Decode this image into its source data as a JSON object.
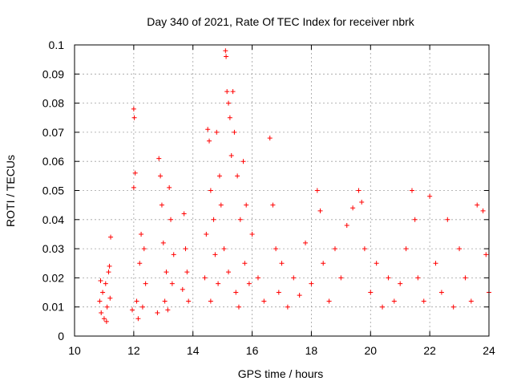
{
  "chart_data": {
    "type": "scatter",
    "title": "Day 340 of 2021, Rate Of TEC Index for receiver nbrk",
    "xlabel": "GPS time / hours",
    "ylabel": "ROTI / TECUs",
    "xlim": [
      10,
      24
    ],
    "ylim": [
      0,
      0.1
    ],
    "x_ticks": [
      "10",
      "12",
      "14",
      "16",
      "18",
      "20",
      "22",
      "24"
    ],
    "y_ticks": [
      "0",
      "0.01",
      "0.02",
      "0.03",
      "0.04",
      "0.05",
      "0.06",
      "0.07",
      "0.08",
      "0.09",
      "0.1"
    ],
    "grid": true,
    "legend": "none",
    "marker": "plus",
    "color": "#ff0000",
    "series": [
      {
        "values_description": "ROTI samples",
        "points": [
          [
            10.85,
            0.012
          ],
          [
            10.9,
            0.008
          ],
          [
            10.95,
            0.015
          ],
          [
            11.0,
            0.006
          ],
          [
            11.05,
            0.018
          ],
          [
            11.1,
            0.01
          ],
          [
            11.15,
            0.022
          ],
          [
            11.2,
            0.013
          ],
          [
            11.22,
            0.034
          ],
          [
            11.18,
            0.024
          ],
          [
            10.88,
            0.019
          ],
          [
            11.08,
            0.005
          ],
          [
            12.0,
            0.078
          ],
          [
            12.02,
            0.075
          ],
          [
            12.05,
            0.056
          ],
          [
            12.0,
            0.051
          ],
          [
            11.95,
            0.009
          ],
          [
            12.1,
            0.012
          ],
          [
            12.2,
            0.025
          ],
          [
            12.25,
            0.035
          ],
          [
            12.3,
            0.01
          ],
          [
            12.15,
            0.006
          ],
          [
            12.35,
            0.03
          ],
          [
            12.4,
            0.018
          ],
          [
            12.85,
            0.061
          ],
          [
            12.9,
            0.055
          ],
          [
            12.95,
            0.045
          ],
          [
            13.0,
            0.032
          ],
          [
            13.05,
            0.012
          ],
          [
            13.1,
            0.022
          ],
          [
            13.2,
            0.051
          ],
          [
            13.25,
            0.04
          ],
          [
            13.3,
            0.018
          ],
          [
            13.35,
            0.028
          ],
          [
            12.8,
            0.008
          ],
          [
            13.15,
            0.009
          ],
          [
            13.7,
            0.042
          ],
          [
            13.75,
            0.03
          ],
          [
            13.8,
            0.022
          ],
          [
            13.85,
            0.012
          ],
          [
            13.65,
            0.016
          ],
          [
            14.5,
            0.071
          ],
          [
            14.55,
            0.067
          ],
          [
            14.6,
            0.05
          ],
          [
            14.7,
            0.04
          ],
          [
            14.8,
            0.07
          ],
          [
            14.9,
            0.055
          ],
          [
            14.45,
            0.035
          ],
          [
            14.4,
            0.02
          ],
          [
            14.6,
            0.012
          ],
          [
            14.75,
            0.028
          ],
          [
            14.85,
            0.018
          ],
          [
            14.95,
            0.045
          ],
          [
            15.1,
            0.098
          ],
          [
            15.12,
            0.096
          ],
          [
            15.15,
            0.084
          ],
          [
            15.2,
            0.08
          ],
          [
            15.25,
            0.075
          ],
          [
            15.3,
            0.062
          ],
          [
            15.35,
            0.084
          ],
          [
            15.4,
            0.07
          ],
          [
            15.5,
            0.055
          ],
          [
            15.6,
            0.04
          ],
          [
            15.7,
            0.06
          ],
          [
            15.8,
            0.045
          ],
          [
            15.05,
            0.03
          ],
          [
            15.2,
            0.022
          ],
          [
            15.45,
            0.015
          ],
          [
            15.55,
            0.01
          ],
          [
            15.75,
            0.025
          ],
          [
            15.9,
            0.018
          ],
          [
            16.0,
            0.035
          ],
          [
            16.2,
            0.02
          ],
          [
            16.4,
            0.012
          ],
          [
            16.6,
            0.068
          ],
          [
            16.7,
            0.045
          ],
          [
            16.8,
            0.03
          ],
          [
            16.9,
            0.015
          ],
          [
            17.0,
            0.025
          ],
          [
            17.2,
            0.01
          ],
          [
            17.4,
            0.02
          ],
          [
            17.6,
            0.014
          ],
          [
            17.8,
            0.032
          ],
          [
            18.0,
            0.018
          ],
          [
            18.2,
            0.05
          ],
          [
            18.3,
            0.043
          ],
          [
            18.4,
            0.025
          ],
          [
            18.6,
            0.012
          ],
          [
            18.8,
            0.03
          ],
          [
            19.0,
            0.02
          ],
          [
            19.2,
            0.038
          ],
          [
            19.4,
            0.044
          ],
          [
            19.6,
            0.05
          ],
          [
            19.7,
            0.046
          ],
          [
            19.8,
            0.03
          ],
          [
            20.0,
            0.015
          ],
          [
            20.2,
            0.025
          ],
          [
            20.4,
            0.01
          ],
          [
            20.6,
            0.02
          ],
          [
            20.8,
            0.012
          ],
          [
            21.0,
            0.018
          ],
          [
            21.2,
            0.03
          ],
          [
            21.4,
            0.05
          ],
          [
            21.5,
            0.04
          ],
          [
            21.6,
            0.02
          ],
          [
            21.8,
            0.012
          ],
          [
            22.0,
            0.048
          ],
          [
            22.2,
            0.025
          ],
          [
            22.4,
            0.015
          ],
          [
            22.6,
            0.04
          ],
          [
            22.8,
            0.01
          ],
          [
            23.0,
            0.03
          ],
          [
            23.2,
            0.02
          ],
          [
            23.4,
            0.012
          ],
          [
            23.6,
            0.045
          ],
          [
            23.8,
            0.043
          ],
          [
            23.9,
            0.028
          ],
          [
            24.0,
            0.015
          ]
        ]
      }
    ]
  }
}
